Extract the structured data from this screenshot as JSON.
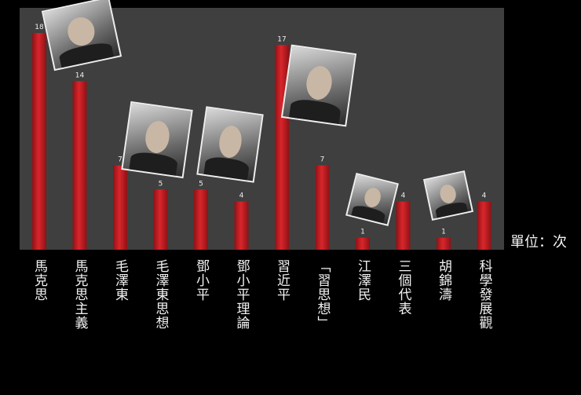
{
  "chart_data": {
    "type": "bar",
    "categories": [
      "馬克思",
      "馬克思主義",
      "毛澤東",
      "毛澤東思想",
      "鄧小平",
      "鄧小平理論",
      "習近平",
      "「習思想」",
      "江澤民",
      "三個代表",
      "胡錦濤",
      "科學發展觀"
    ],
    "values": [
      18,
      14,
      7,
      5,
      5,
      4,
      17,
      7,
      1,
      4,
      1,
      4
    ],
    "unit_label": "單位：次",
    "ylim": [
      0,
      18
    ],
    "grid": false,
    "bar_color": "#d9262b",
    "plot_background": "#3f3f3f"
  }
}
